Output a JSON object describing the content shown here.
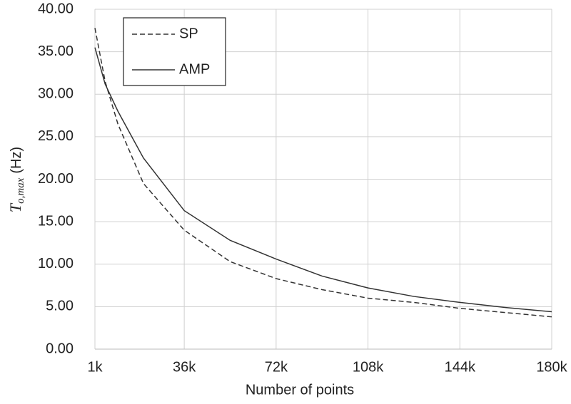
{
  "chart_data": {
    "type": "line",
    "x_label": "Number of points",
    "y_label": {
      "symbol": "T",
      "subscript": "o,max",
      "unit": "(Hz)"
    },
    "x": [
      1000,
      5000,
      10000,
      20000,
      36000,
      54000,
      72000,
      90000,
      108000,
      126000,
      144000,
      162000,
      180000
    ],
    "series": [
      {
        "name": "SP",
        "color": "#333333",
        "dash": true,
        "values": [
          37.8,
          31.5,
          26.5,
          19.5,
          14.0,
          10.3,
          8.3,
          7.0,
          6.0,
          5.5,
          4.8,
          4.3,
          3.8
        ]
      },
      {
        "name": "AMP",
        "color": "#333333",
        "dash": false,
        "values": [
          35.5,
          31.2,
          28.0,
          22.5,
          16.3,
          12.8,
          10.6,
          8.6,
          7.2,
          6.2,
          5.5,
          4.9,
          4.4
        ]
      }
    ],
    "xlim": [
      1000,
      180000
    ],
    "xticks": [
      {
        "value": 1000,
        "label": "1k"
      },
      {
        "value": 36000,
        "label": "36k"
      },
      {
        "value": 72000,
        "label": "72k"
      },
      {
        "value": 108000,
        "label": "108k"
      },
      {
        "value": 144000,
        "label": "144k"
      },
      {
        "value": 180000,
        "label": "180k"
      }
    ],
    "ylim": [
      0,
      40
    ],
    "yticks": [
      {
        "value": 0,
        "label": "0.00"
      },
      {
        "value": 5,
        "label": "5.00"
      },
      {
        "value": 10,
        "label": "10.00"
      },
      {
        "value": 15,
        "label": "15.00"
      },
      {
        "value": 20,
        "label": "20.00"
      },
      {
        "value": 25,
        "label": "25.00"
      },
      {
        "value": 30,
        "label": "30.00"
      },
      {
        "value": 35,
        "label": "35.00"
      },
      {
        "value": 40,
        "label": "40.00"
      }
    ],
    "grid": true,
    "legend": "top-left"
  }
}
